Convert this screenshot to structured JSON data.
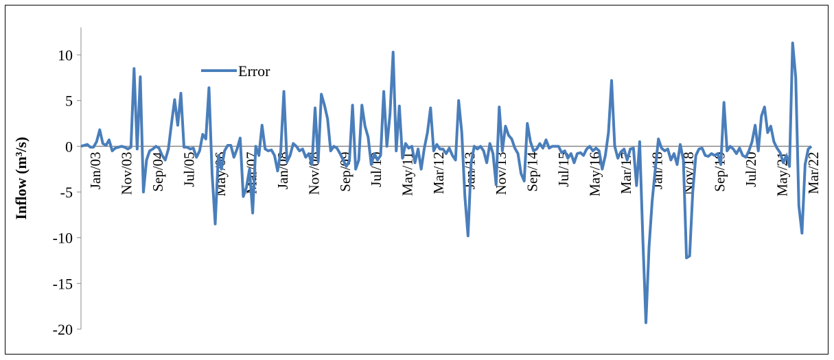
{
  "chart_data": {
    "type": "line",
    "y_label": "Inflow (m³/s)",
    "legend": "top-left",
    "ylim": [
      -20,
      13
    ],
    "yticks": [
      -20,
      -15,
      -10,
      -5,
      0,
      5,
      10
    ],
    "categories": [
      "Jan/03",
      null,
      null,
      null,
      null,
      null,
      null,
      null,
      null,
      null,
      "Nov/03",
      null,
      null,
      null,
      null,
      null,
      null,
      null,
      null,
      null,
      "Sep/04",
      null,
      null,
      null,
      null,
      null,
      null,
      null,
      null,
      null,
      "Jul/05",
      null,
      null,
      null,
      null,
      null,
      null,
      null,
      null,
      null,
      "May/06",
      null,
      null,
      null,
      null,
      null,
      null,
      null,
      null,
      null,
      "Mar/07",
      null,
      null,
      null,
      null,
      null,
      null,
      null,
      null,
      null,
      "Jan/08",
      null,
      null,
      null,
      null,
      null,
      null,
      null,
      null,
      null,
      "Nov/08",
      null,
      null,
      null,
      null,
      null,
      null,
      null,
      null,
      null,
      "Sep/09",
      null,
      null,
      null,
      null,
      null,
      null,
      null,
      null,
      null,
      "Jul/10",
      null,
      null,
      null,
      null,
      null,
      null,
      null,
      null,
      null,
      "May/11",
      null,
      null,
      null,
      null,
      null,
      null,
      null,
      null,
      null,
      "Mar/12",
      null,
      null,
      null,
      null,
      null,
      null,
      null,
      null,
      null,
      "Jan/13",
      null,
      null,
      null,
      null,
      null,
      null,
      null,
      null,
      null,
      "Nov/13",
      null,
      null,
      null,
      null,
      null,
      null,
      null,
      null,
      null,
      "Sep/14",
      null,
      null,
      null,
      null,
      null,
      null,
      null,
      null,
      null,
      "Jul/15",
      null,
      null,
      null,
      null,
      null,
      null,
      null,
      null,
      null,
      "May/16",
      null,
      null,
      null,
      null,
      null,
      null,
      null,
      null,
      null,
      "Mar/17",
      null,
      null,
      null,
      null,
      null,
      null,
      null,
      null,
      null,
      "Jan/18",
      null,
      null,
      null,
      null,
      null,
      null,
      null,
      null,
      null,
      "Nov/18",
      null,
      null,
      null,
      null,
      null,
      null,
      null,
      null,
      null,
      "Sep/19",
      null,
      null,
      null,
      null,
      null,
      null,
      null,
      null,
      null,
      "Jul/20",
      null,
      null,
      null,
      null,
      null,
      null,
      null,
      null,
      null,
      "May/21",
      null,
      null,
      null,
      null,
      null,
      null,
      null,
      null,
      null,
      "Mar/22",
      null,
      null,
      null,
      null
    ],
    "series": [
      {
        "name": "Error",
        "color": "#4a7ebb",
        "values": [
          0,
          0.1,
          0.2,
          -0.1,
          -0.1,
          0.5,
          1.8,
          0.3,
          0.1,
          0.7,
          -0.5,
          -0.2,
          -0.1,
          0,
          -0.1,
          -0.3,
          -0.1,
          8.5,
          -0.3,
          7.6,
          -5,
          -1.5,
          -0.5,
          -0.3,
          0,
          -0.2,
          -1,
          -1.5,
          -0.3,
          2.5,
          5.1,
          2.3,
          5.8,
          -0.1,
          -0.1,
          -0.3,
          -0.2,
          -1.2,
          -0.5,
          1.3,
          0.8,
          6.4,
          -3,
          -8.5,
          -1,
          -2.5,
          -0.5,
          0.1,
          0.1,
          -1.2,
          -0.3,
          0.9,
          -5.5,
          -4.5,
          -2.5,
          -7.3,
          0,
          -1,
          2.3,
          -0.3,
          -0.5,
          -0.4,
          -1,
          -2.7,
          -0.5,
          6,
          -1.7,
          -1,
          0.3,
          0,
          -0.5,
          -0.3,
          -1.2,
          -0.8,
          -2,
          4.2,
          -1.7,
          5.7,
          4.5,
          3,
          -0.5,
          0,
          -0.2,
          -0.8,
          -1.5,
          -2.2,
          -1.6,
          4.5,
          -2.5,
          -1.5,
          4.5,
          2.2,
          1,
          -2,
          -0.8,
          -1.5,
          -1,
          6,
          0,
          3.5,
          10.3,
          -0.5,
          4.4,
          -1.3,
          0.3,
          -0.2,
          0,
          -1.8,
          -0.3,
          -2.5,
          -0.2,
          1.5,
          4.2,
          -0.5,
          0.2,
          -0.3,
          -0.3,
          -0.8,
          -0.2,
          -1,
          -1.5,
          5,
          1.5,
          -5.5,
          -9.8,
          -1.8,
          0,
          -0.3,
          0,
          -0.5,
          -1.8,
          0.3,
          -0.8,
          -4.2,
          4.3,
          -0.5,
          2.2,
          1.2,
          0.8,
          -0.2,
          -0.8,
          -3,
          -3.8,
          2.5,
          0.5,
          -0.5,
          -0.3,
          0.3,
          -0.2,
          0.7,
          -0.2,
          0,
          0,
          0,
          -0.7,
          -0.5,
          -1.3,
          -0.8,
          -1.8,
          -0.8,
          -0.7,
          -1,
          -0.3,
          0,
          -0.5,
          -0.2,
          -0.5,
          -2.5,
          -1,
          1.5,
          7.2,
          0,
          -1.3,
          -0.6,
          -0.3,
          -1.5,
          -0.3,
          -0.2,
          -4.3,
          0.5,
          -10,
          -19.3,
          -11,
          -6,
          -2.5,
          0.8,
          -0.2,
          -0.5,
          -0.3,
          -1.5,
          -0.8,
          -2,
          0.2,
          -1.5,
          -12.2,
          -12,
          -5,
          -1,
          -0.3,
          -0.2,
          -1,
          -1.1,
          -0.8,
          -1,
          -0.8,
          -2,
          4.8,
          -0.5,
          0,
          -0.3,
          -0.8,
          -0.2,
          -1,
          -1.2,
          -0.5,
          0.5,
          2.3,
          -0.5,
          3.3,
          4.3,
          1.5,
          2.2,
          0.5,
          -0.2,
          -0.7,
          -1.8,
          -1,
          -2.2,
          11.3,
          7.5,
          -6.5,
          -9.5,
          -2,
          -0.3,
          0
        ]
      }
    ]
  }
}
